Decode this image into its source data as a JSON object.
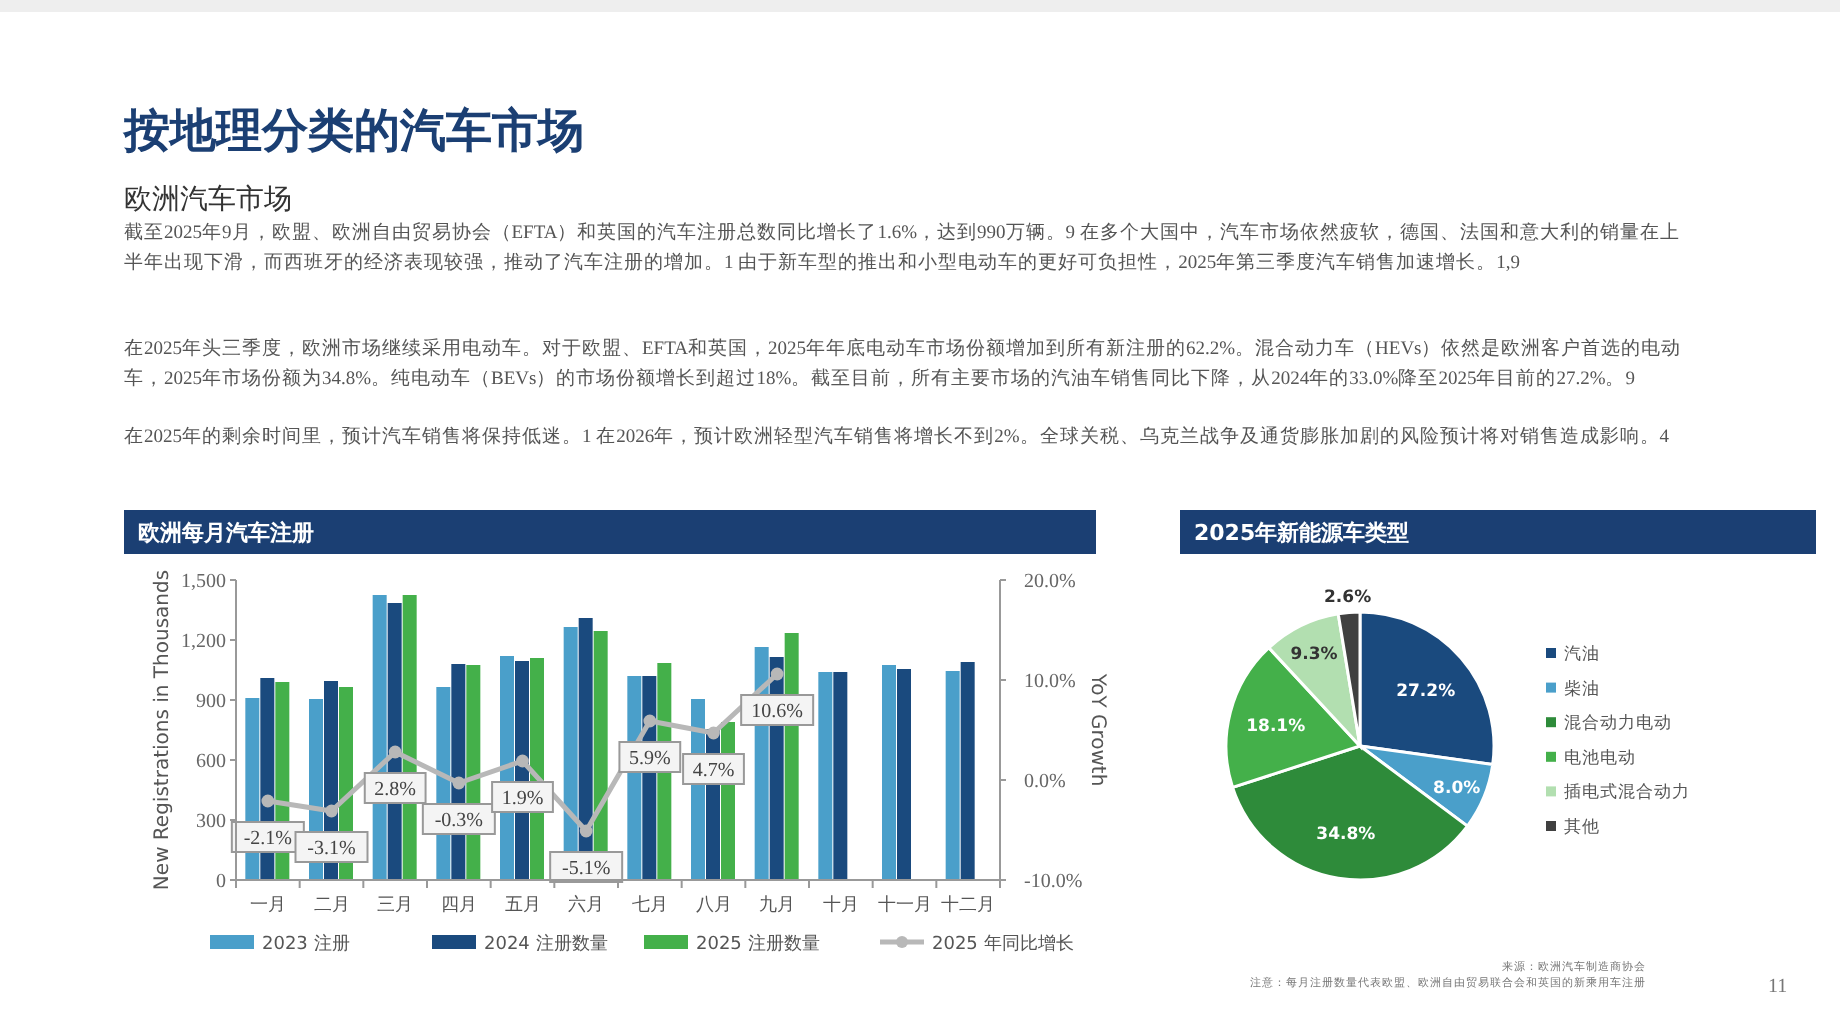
{
  "chart_data": [
    {
      "type": "other",
      "title": "按地理分类的汽车市场",
      "subtitle": "欧洲汽车市场",
      "annotations": [
        "截至2025年9月，欧盟、欧洲自由贸易协会（EFTA）和英国的汽车注册总数同比增长了1.6%，达到990万辆。9 在多个大国中，汽车市场依然疲软，德国、法国和意大利的销量在上半年出现下滑，而西班牙的经济表现较强，推动了汽车注册的增加。1 由于新车型的推出和小型电动车的更好可负担性，2025年第三季度汽车销售加速增长。1,9",
        "在2025年头三季度，欧洲市场继续采用电动车。对于欧盟、EFTA和英国，2025年年底电动车市场份额增加到所有新注册的62.2%。混合动力车（HEVs）依然是欧洲客户首选的电动车，2025年市场份额为34.8%。纯电动车（BEVs）的市场份额增长到超过18%。截至目前，所有主要市场的汽油车销售同比下降，从2024年的33.0%降至2025年目前的27.2%。9",
        "在2025年的剩余时间里，预计汽车销售将保持低迷。1 在2026年，预计欧洲轻型汽车销售将增长不到2%。全球关税、乌克兰战争及通货膨胀加剧的风险预计将对销售造成影响。4",
        "11"
      ]
    },
    {
      "type": "bar",
      "title": "欧洲每月汽车注册",
      "categories": [
        "一月",
        "二月",
        "三月",
        "四月",
        "五月",
        "六月",
        "七月",
        "八月",
        "九月",
        "十月",
        "十一月",
        "十二月"
      ],
      "series": [
        {
          "name": "2023 注册",
          "color": "#4a9fca",
          "values": [
            910,
            905,
            1425,
            965,
            1120,
            1265,
            1020,
            905,
            1165,
            1040,
            1075,
            1045
          ]
        },
        {
          "name": "2024 注册数量",
          "color": "#1a4a7e",
          "values": [
            1010,
            995,
            1385,
            1080,
            1095,
            1310,
            1020,
            755,
            1115,
            1040,
            1055,
            1090
          ]
        },
        {
          "name": "2025 注册数量",
          "color": "#44b04a",
          "values": [
            990,
            965,
            1425,
            1075,
            1110,
            1245,
            1085,
            790,
            1235,
            null,
            null,
            null
          ]
        },
        {
          "name": "2025 年同比增长",
          "type": "line",
          "axis": "y2",
          "color": "#b8b8b8",
          "marker": "circle",
          "data_labels": true,
          "values": [
            -2.1,
            -3.1,
            2.8,
            -0.3,
            1.9,
            -5.1,
            5.9,
            4.7,
            10.6,
            null,
            null,
            null
          ],
          "value_labels": [
            "-2.1%",
            "-3.1%",
            "2.8%",
            "-0.3%",
            "1.9%",
            "-5.1%",
            "5.9%",
            "4.7%",
            "10.6%",
            null,
            null,
            null
          ]
        }
      ],
      "ylabel": "New Registrations in Thousands",
      "y2label": "YoY Growth",
      "ylim": [
        0,
        1500
      ],
      "yticks": [
        0,
        300,
        600,
        900,
        {
          "value": 1200,
          "label": "1,200"
        },
        {
          "value": 1500,
          "label": "1,500"
        }
      ],
      "y2lim": [
        -10,
        20
      ],
      "y2ticks": [
        {
          "value": -10,
          "label": "-10.0%"
        },
        {
          "value": 0,
          "label": "0.0%"
        },
        {
          "value": 10,
          "label": "10.0%"
        },
        {
          "value": 20,
          "label": "20.0%"
        }
      ],
      "grid": false,
      "legend": "bottom"
    },
    {
      "type": "pie",
      "title": "2025年新能源车类型",
      "categories": [
        "汽油",
        "柴油",
        "混合动力电动",
        "电池电动",
        "插电式混合动力",
        "其他"
      ],
      "values": [
        27.2,
        8.0,
        34.8,
        18.1,
        9.3,
        2.6
      ],
      "colors": [
        "#1a4a7e",
        "#4a9fca",
        "#2e8b3a",
        "#44b04a",
        "#b2dfb0",
        "#404040"
      ],
      "value_labels": [
        "27.2%",
        "8.0%",
        "34.8%",
        "18.1%",
        "9.3%",
        "2.6%"
      ],
      "data_labels": true,
      "legend": "right",
      "annotations": [
        "来源：欧洲汽车制造商协会",
        "注意：每月注册数量代表欧盟、欧洲自由贸易联合会和英国的新乘用车注册"
      ]
    }
  ]
}
